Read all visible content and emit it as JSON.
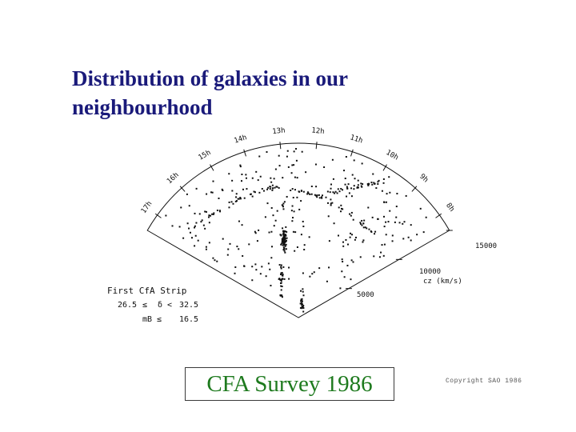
{
  "slide": {
    "title_line1": "Distribution of galaxies in our",
    "title_line2": "neighbourhood",
    "survey_label": "CFA Survey 1986",
    "copyright": "Copyright SAO 1986"
  },
  "plot": {
    "strip_title": "First CfA Strip",
    "dec_lower": "26.5",
    "dec_symbol": "δ <",
    "dec_upper": "32.5",
    "leq_symbol": "≤",
    "mag_label": "mB",
    "mag_upper": "16.5",
    "ra_labels": [
      "8h",
      "9h",
      "10h",
      "11h",
      "12h",
      "13h",
      "14h",
      "15h",
      "16h",
      "17h"
    ],
    "radius_labels": [
      "5000",
      "10000",
      "15000"
    ],
    "radius_unit": "cz (km/s)",
    "colors": {
      "ink": "#111111",
      "title": "#1a1a7a",
      "survey": "#1e7a1e"
    }
  }
}
